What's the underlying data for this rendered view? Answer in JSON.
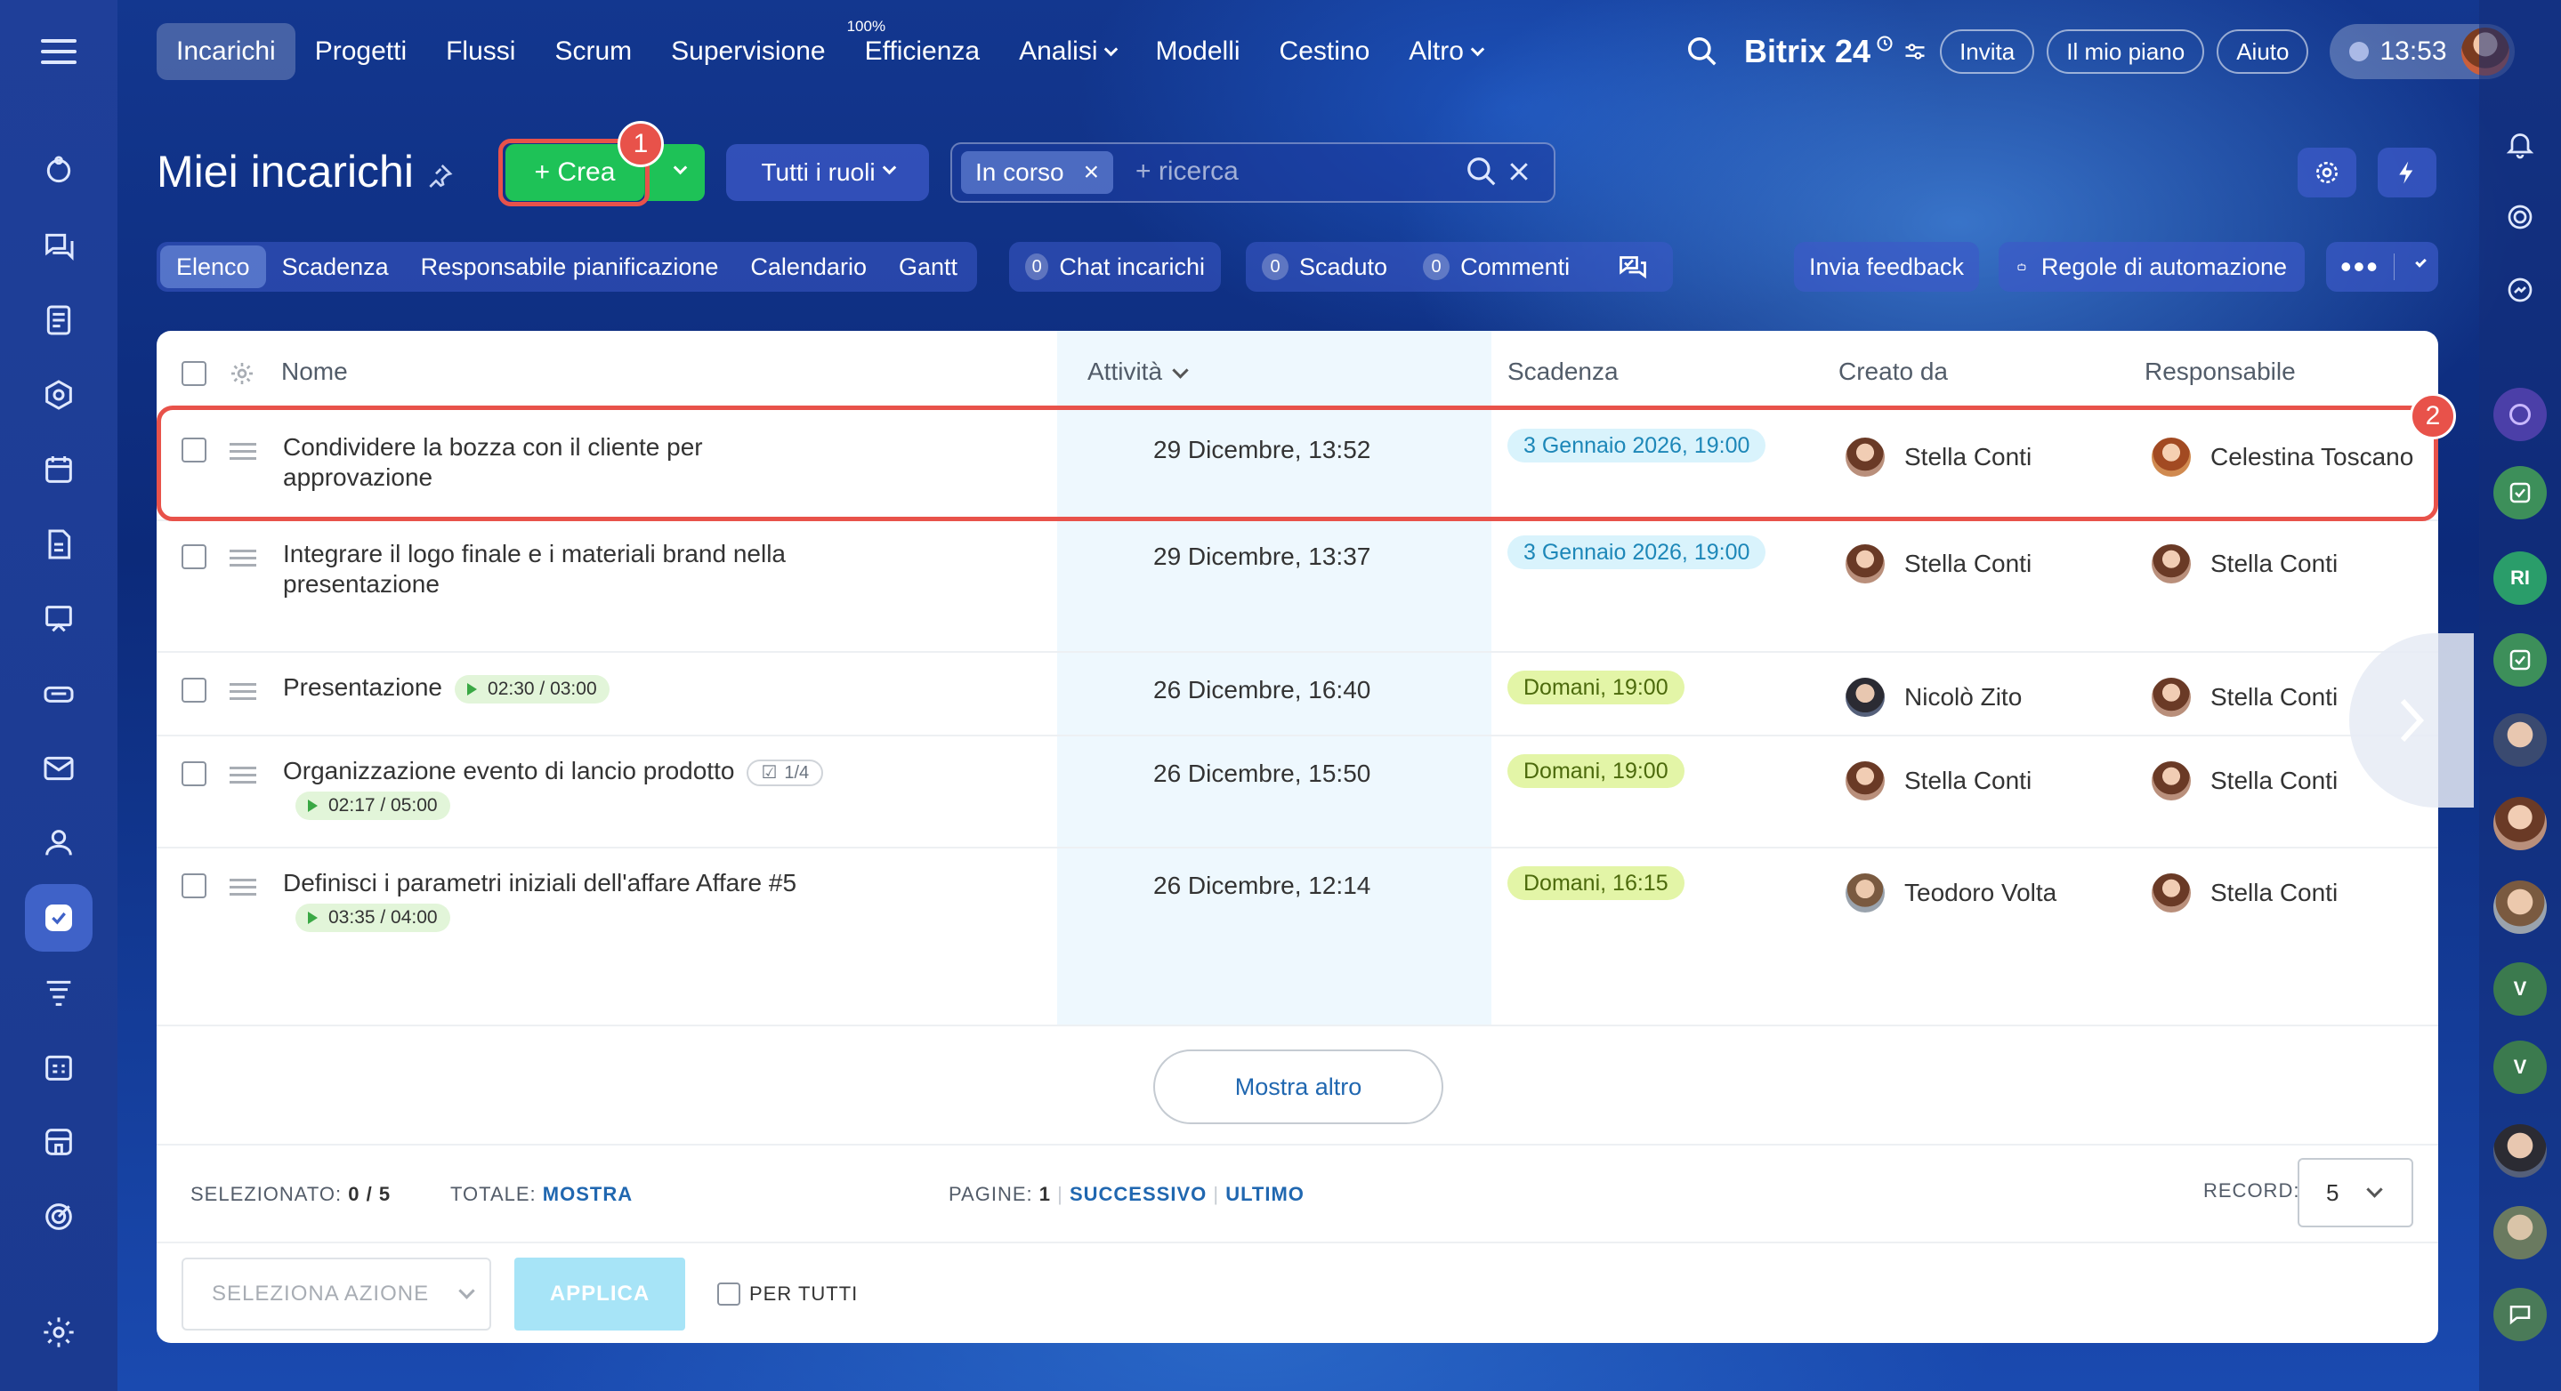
{
  "nav": {
    "items": [
      {
        "label": "Incarichi",
        "active": true
      },
      {
        "label": "Progetti"
      },
      {
        "label": "Flussi"
      },
      {
        "label": "Scrum"
      },
      {
        "label": "Supervisione"
      },
      {
        "label": "Efficienza",
        "sup": "100%"
      },
      {
        "label": "Analisi",
        "dropdown": true
      },
      {
        "label": "Modelli"
      },
      {
        "label": "Cestino"
      },
      {
        "label": "Altro",
        "dropdown": true
      }
    ],
    "brand": "Bitrix 24",
    "invite": "Invita",
    "my_plan": "Il mio piano",
    "help": "Aiuto",
    "clock": "13:53"
  },
  "header": {
    "title": "Miei incarichi",
    "create_label": "+ Crea",
    "roles_label": "Tutti i ruoli",
    "filter_chip": "In corso",
    "search_placeholder": "+ ricerca",
    "badge1": "1",
    "badge2": "2"
  },
  "views": {
    "tabs": [
      "Elenco",
      "Scadenza",
      "Responsabile pianificazione",
      "Calendario",
      "Gantt"
    ],
    "chat_count": "0",
    "chat_label": "Chat incarichi",
    "overdue_count": "0",
    "overdue_label": "Scaduto",
    "comments_count": "0",
    "comments_label": "Commenti",
    "feedback": "Invia feedback",
    "automation": "Regole di automazione"
  },
  "table": {
    "headers": {
      "name": "Nome",
      "activity": "Attività",
      "deadline": "Scadenza",
      "created_by": "Creato da",
      "responsible": "Responsabile"
    },
    "rows": [
      {
        "name": "Condividere la bozza con il cliente per approvazione",
        "activity": "29 Dicembre, 13:52",
        "deadline": "3 Gennaio 2026, 19:00",
        "deadline_color": "blue",
        "created_by": "Stella Conti",
        "responsible": "Celestina Toscano"
      },
      {
        "name": "Integrare il logo finale e i materiali brand nella presentazione",
        "activity": "29 Dicembre, 13:37",
        "deadline": "3 Gennaio 2026, 19:00",
        "deadline_color": "blue",
        "created_by": "Stella Conti",
        "responsible": "Stella Conti"
      },
      {
        "name": "Presentazione",
        "timer": "02:30 / 03:00",
        "activity": "26 Dicembre, 16:40",
        "deadline": "Domani, 19:00",
        "deadline_color": "green",
        "created_by": "Nicolò Zito",
        "responsible": "Stella Conti"
      },
      {
        "name": "Organizzazione evento di lancio prodotto",
        "checklist": "1/4",
        "timer": "02:17 / 05:00",
        "activity": "26 Dicembre, 15:50",
        "deadline": "Domani, 19:00",
        "deadline_color": "green",
        "created_by": "Stella Conti",
        "responsible": "Stella Conti"
      },
      {
        "name": "Definisci i parametri iniziali dell'affare Affare #5",
        "timer": "03:35 / 04:00",
        "activity": "26 Dicembre, 12:14",
        "deadline": "Domani, 16:15",
        "deadline_color": "green",
        "created_by": "Teodoro Volta",
        "responsible": "Stella Conti"
      }
    ]
  },
  "footer": {
    "show_more": "Mostra altro",
    "selected_label": "SELEZIONATO:",
    "selected_value": "0 / 5",
    "total_label": "TOTALE:",
    "total_link": "MOSTRA",
    "pages_label": "PAGINE:",
    "pages_value": "1",
    "next": "SUCCESSIVO",
    "last": "ULTIMO",
    "record_label": "RECORD:",
    "record_value": "5",
    "action_select": "SELEZIONA AZIONE",
    "apply": "APPLICA",
    "for_all": "PER TUTTI"
  },
  "right_bar": {
    "initials_1": "RI",
    "initials_2": "V",
    "initials_3": "V"
  }
}
